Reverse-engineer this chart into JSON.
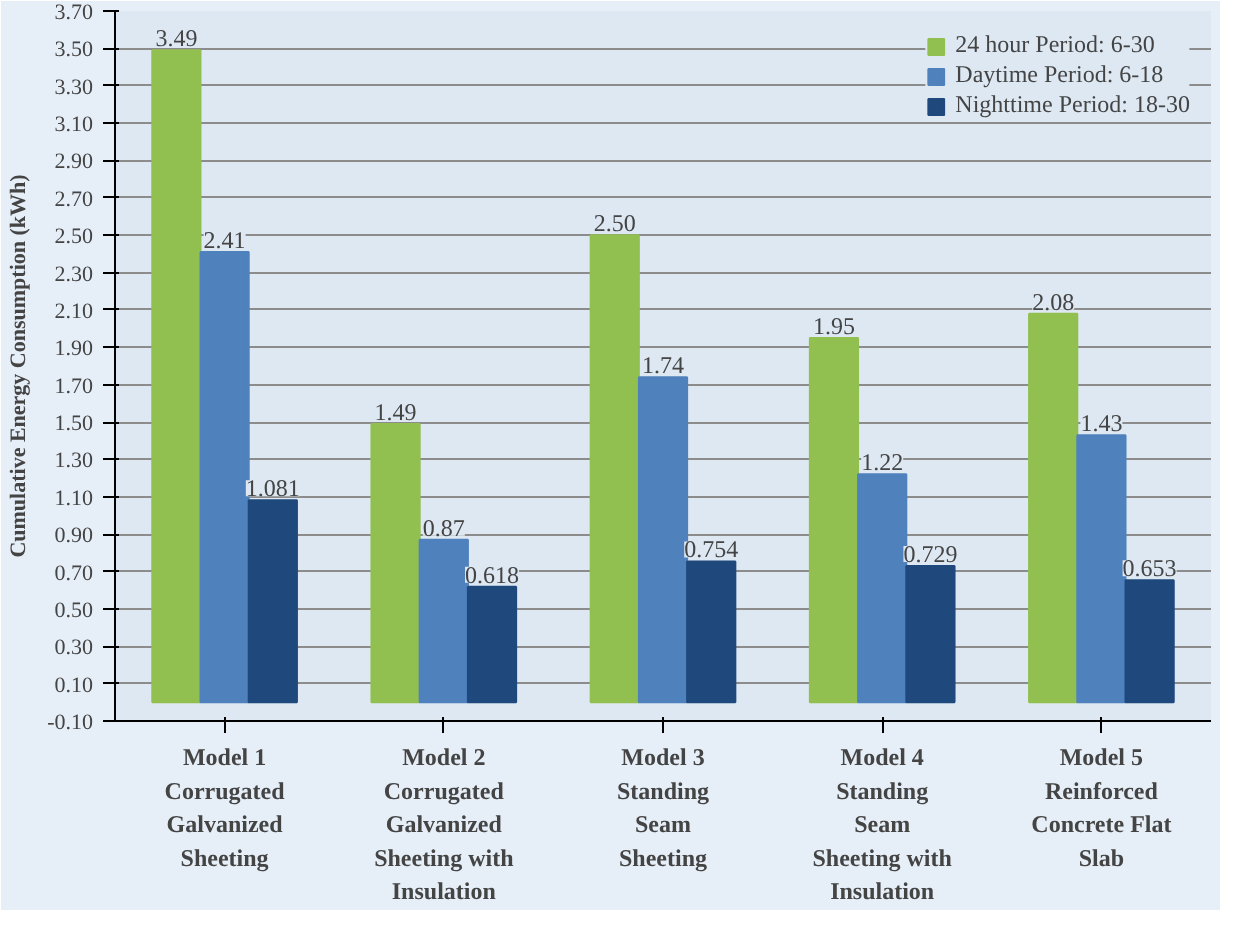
{
  "chart_data": {
    "type": "bar",
    "ylabel": "Cumulative Energy Consumption (kWh)",
    "categories": [
      "Model 1\nCorrugated\nGalvanized\nSheeting",
      "Model 2\nCorrugated\nGalvanized\nSheeting with\nInsulation",
      "Model 3\nStanding\nSeam\nSheeting",
      "Model 4\nStanding\nSeam\nSheeting with\nInsulation",
      "Model 5\nReinforced\nConcrete Flat\nSlab"
    ],
    "series": [
      {
        "name": "24 hour Period: 6-30",
        "color": "#92c050",
        "values": [
          3.49,
          1.49,
          2.5,
          1.95,
          2.08
        ],
        "value_labels": [
          "3.49",
          "1.49",
          "2.50",
          "1.95",
          "2.08"
        ]
      },
      {
        "name": "Daytime Period: 6-18",
        "color": "#4f81bd",
        "values": [
          2.41,
          0.87,
          1.74,
          1.22,
          1.43
        ],
        "value_labels": [
          "2.41",
          "0.87",
          "1.74",
          "1.22",
          "1.43"
        ]
      },
      {
        "name": "Nighttime Period: 18-30",
        "color": "#1f497d",
        "values": [
          1.081,
          0.618,
          0.754,
          0.729,
          0.653
        ],
        "value_labels": [
          "1.081",
          "0.618",
          "0.754",
          "0.729",
          "0.653"
        ]
      }
    ],
    "ylim": [
      -0.1,
      3.7
    ],
    "yticks": [
      {
        "value": -0.1,
        "label": "-0.10"
      },
      {
        "value": 0.1,
        "label": "0.10"
      },
      {
        "value": 0.3,
        "label": "0.30"
      },
      {
        "value": 0.5,
        "label": "0.50"
      },
      {
        "value": 0.7,
        "label": "0.70"
      },
      {
        "value": 0.9,
        "label": "0.90"
      },
      {
        "value": 1.1,
        "label": "1.10"
      },
      {
        "value": 1.3,
        "label": "1.30"
      },
      {
        "value": 1.5,
        "label": "1.50"
      },
      {
        "value": 1.7,
        "label": "1.70"
      },
      {
        "value": 1.9,
        "label": "1.90"
      },
      {
        "value": 2.1,
        "label": "2.10"
      },
      {
        "value": 2.3,
        "label": "2.30"
      },
      {
        "value": 2.5,
        "label": "2.50"
      },
      {
        "value": 2.7,
        "label": "2.70"
      },
      {
        "value": 2.9,
        "label": "2.90"
      },
      {
        "value": 3.1,
        "label": "3.10"
      },
      {
        "value": 3.3,
        "label": "3.30"
      },
      {
        "value": 3.5,
        "label": "3.50"
      },
      {
        "value": 3.7,
        "label": "3.70"
      }
    ],
    "grid": "y",
    "legend": "top right"
  }
}
